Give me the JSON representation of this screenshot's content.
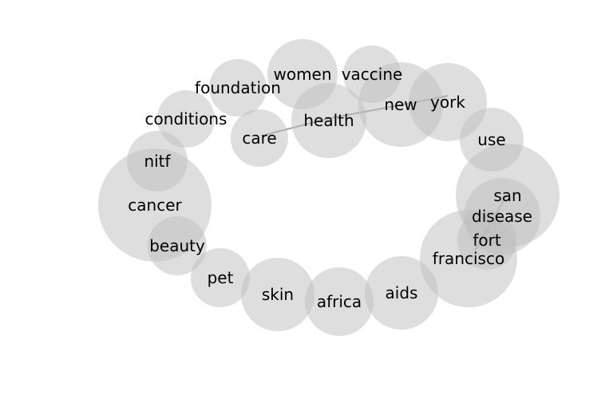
{
  "diagram": {
    "style": {
      "bubble_color": "#bdbdbd",
      "link_color": "#8c8c8c",
      "text_color": "#000000",
      "background": "#ffffff"
    },
    "nodes": [
      {
        "id": "women",
        "label": "women"
      },
      {
        "id": "vaccine",
        "label": "vaccine"
      },
      {
        "id": "foundation",
        "label": "foundation"
      },
      {
        "id": "new",
        "label": "new"
      },
      {
        "id": "york",
        "label": "york"
      },
      {
        "id": "health",
        "label": "health"
      },
      {
        "id": "conditions",
        "label": "conditions"
      },
      {
        "id": "care",
        "label": "care"
      },
      {
        "id": "use",
        "label": "use"
      },
      {
        "id": "nitf",
        "label": "nitf"
      },
      {
        "id": "san",
        "label": "san"
      },
      {
        "id": "cancer",
        "label": "cancer"
      },
      {
        "id": "disease",
        "label": "disease"
      },
      {
        "id": "fort",
        "label": "fort"
      },
      {
        "id": "beauty",
        "label": "beauty"
      },
      {
        "id": "francisco",
        "label": "francisco"
      },
      {
        "id": "pet",
        "label": "pet"
      },
      {
        "id": "aids",
        "label": "aids"
      },
      {
        "id": "skin",
        "label": "skin"
      },
      {
        "id": "africa",
        "label": "africa"
      }
    ],
    "links": [
      {
        "source": "care",
        "target": "health"
      },
      {
        "source": "health",
        "target": "new"
      },
      {
        "source": "new",
        "target": "york"
      },
      {
        "source": "san",
        "target": "francisco"
      }
    ]
  }
}
